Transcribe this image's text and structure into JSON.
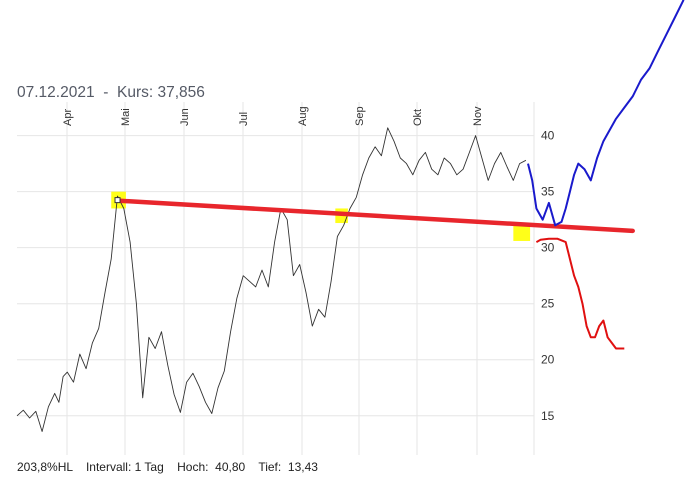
{
  "header": {
    "date": "07.12.2021",
    "separator": "-",
    "price_label": "Kurs:",
    "price_value": "37,856"
  },
  "footer": {
    "hl": "203,8%HL",
    "interval_label": "Intervall:",
    "interval_value": "1 Tag",
    "high_label": "Hoch:",
    "high_value": "40,80",
    "low_label": "Tief:",
    "low_value": "13,43"
  },
  "colors": {
    "price": "#333333",
    "trendline": "#e8262c",
    "highlight": "#ffff00",
    "bull_scenario": "#1a1acc",
    "bear_scenario": "#e01010",
    "grid": "#e6e6e6"
  },
  "chart_data": {
    "type": "line",
    "x_ticks": [
      "Apr",
      "Mai",
      "Jun",
      "Jul",
      "Aug",
      "Sep",
      "Okt",
      "Nov"
    ],
    "y_ticks": [
      "15",
      "20",
      "25",
      "30",
      "35",
      "40"
    ],
    "ylim": [
      11.5,
      43
    ],
    "grid": true,
    "x_domain": [
      0,
      244
    ],
    "series": [
      {
        "role": "price",
        "x": [
          0,
          3,
          6,
          9,
          12,
          15,
          18,
          20,
          22,
          24,
          27,
          30,
          33,
          36,
          39,
          42,
          45,
          48,
          51,
          54,
          57,
          60,
          63,
          66,
          69,
          72,
          75,
          78,
          81,
          84,
          87,
          90,
          93,
          96,
          99,
          102,
          105,
          108,
          111,
          114,
          117,
          120,
          123,
          126,
          129,
          132,
          135,
          138,
          141,
          144,
          147,
          150,
          153,
          156,
          159,
          162,
          165,
          168,
          171,
          174,
          177,
          180,
          183,
          186,
          189,
          192,
          195,
          198,
          201,
          204,
          207,
          210,
          213,
          216,
          219,
          222,
          225,
          228,
          231,
          234,
          237,
          240,
          243
        ],
        "y": [
          15.0,
          15.5,
          14.8,
          15.4,
          13.6,
          15.8,
          17.0,
          16.2,
          18.5,
          18.9,
          18.0,
          20.5,
          19.2,
          21.5,
          22.8,
          26.0,
          29.0,
          34.6,
          33.5,
          30.5,
          25.0,
          16.6,
          22.0,
          21.0,
          22.5,
          19.5,
          16.9,
          15.3,
          18.0,
          18.8,
          17.6,
          16.2,
          15.2,
          17.5,
          19.0,
          22.5,
          25.5,
          27.5,
          27.0,
          26.5,
          28.0,
          26.5,
          30.5,
          33.5,
          32.5,
          27.5,
          28.5,
          26.0,
          23.0,
          24.5,
          23.8,
          27.0,
          31.0,
          32.0,
          33.5,
          34.5,
          36.5,
          38.0,
          39.0,
          38.2,
          40.7,
          39.5,
          38.0,
          37.5,
          36.5,
          37.8,
          38.5,
          37.0,
          36.5,
          38.0,
          37.5,
          36.5,
          37.0,
          38.5,
          40.0,
          38.0,
          36.0,
          37.5,
          38.5,
          37.2,
          36.0,
          37.5,
          37.8
        ]
      }
    ],
    "trendline": {
      "x": [
        48,
        294
      ],
      "y": [
        34.2,
        31.5
      ]
    },
    "scenarios": {
      "bull": {
        "x": [
          244,
          246,
          248,
          251,
          254,
          257,
          260,
          262,
          264,
          266,
          268,
          271,
          274,
          277,
          280,
          283,
          286,
          290,
          294,
          298,
          302,
          306,
          310,
          314,
          318,
          324
        ],
        "y": [
          37.5,
          36.0,
          33.5,
          32.5,
          34.0,
          32.0,
          32.3,
          33.5,
          35.0,
          36.5,
          37.5,
          37.0,
          36.0,
          38.0,
          39.5,
          40.5,
          41.5,
          42.5,
          43.5,
          45.0,
          46.0,
          47.5,
          49.0,
          50.5,
          52.0,
          55.0
        ]
      },
      "bear": {
        "x": [
          248,
          250,
          254,
          258,
          262,
          266,
          268,
          270,
          272,
          274,
          276,
          278,
          280,
          282,
          284,
          286,
          288,
          290
        ],
        "y": [
          30.5,
          30.7,
          30.8,
          30.8,
          30.5,
          27.5,
          26.5,
          25.0,
          23.0,
          22.0,
          22.0,
          23.0,
          23.5,
          22.0,
          21.5,
          21.0,
          21.0,
          21.0
        ]
      }
    },
    "highlights": [
      {
        "x": [
          45,
          52
        ],
        "y": [
          33.5,
          35.0
        ]
      },
      {
        "x": [
          152,
          158
        ],
        "y": [
          32.2,
          33.5
        ]
      },
      {
        "x": [
          237,
          245
        ],
        "y": [
          30.6,
          32.0
        ]
      }
    ]
  }
}
